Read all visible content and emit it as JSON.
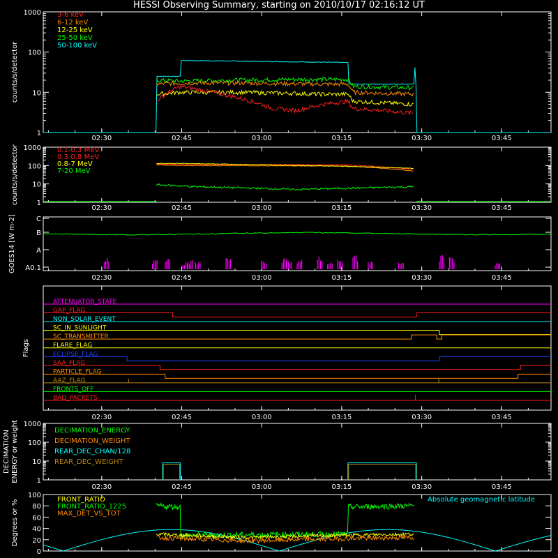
{
  "title": "HESSI Observing Summary, starting on 2010/10/17 02:16:12 UT",
  "time_ticks": [
    "02:30",
    "02:45",
    "03:00",
    "03:15",
    "03:30",
    "03:45"
  ],
  "chart_data": [
    {
      "type": "line",
      "ylabel": "counts/s/detector",
      "ylim": [
        1,
        1000
      ],
      "ylog": true,
      "yticks": [
        "1",
        "10",
        "100",
        "1000"
      ],
      "legend": [
        {
          "name": "3-6 keV",
          "color": "#ff2020"
        },
        {
          "name": "6-12 keV",
          "color": "#ff8c00"
        },
        {
          "name": "12-25 keV",
          "color": "#ffff00"
        },
        {
          "name": "25-50 keV",
          "color": "#00ff00"
        },
        {
          "name": "50-100 keV",
          "color": "#00ffff"
        }
      ],
      "series": [
        {
          "color": "#00ffff",
          "segments": [
            [
              0.0,
              1
            ],
            [
              0.222,
              1
            ],
            [
              0.223,
              25
            ],
            [
              0.27,
              25
            ],
            [
              0.271,
              62
            ],
            [
              0.6,
              55
            ],
            [
              0.601,
              16
            ],
            [
              0.73,
              16
            ],
            [
              0.731,
              55
            ],
            [
              0.735,
              1
            ],
            [
              1.0,
              1
            ]
          ]
        },
        {
          "color": "#00ff00",
          "segments": [
            [
              0.223,
              20
            ],
            [
              0.27,
              19
            ],
            [
              0.35,
              20
            ],
            [
              0.5,
              21
            ],
            [
              0.6,
              21
            ],
            [
              0.61,
              14
            ],
            [
              0.73,
              13
            ]
          ]
        },
        {
          "color": "#ff8c00",
          "segments": [
            [
              0.223,
              16
            ],
            [
              0.27,
              17
            ],
            [
              0.4,
              17
            ],
            [
              0.55,
              16
            ],
            [
              0.6,
              16
            ],
            [
              0.61,
              10
            ],
            [
              0.73,
              9
            ]
          ]
        },
        {
          "color": "#ffff00",
          "segments": [
            [
              0.223,
              9
            ],
            [
              0.27,
              10
            ],
            [
              0.4,
              10
            ],
            [
              0.55,
              9
            ],
            [
              0.6,
              9
            ],
            [
              0.61,
              6
            ],
            [
              0.73,
              5
            ]
          ]
        },
        {
          "color": "#ff2020",
          "segments": [
            [
              0.223,
              6
            ],
            [
              0.27,
              14
            ],
            [
              0.35,
              9
            ],
            [
              0.45,
              4
            ],
            [
              0.5,
              3.5
            ],
            [
              0.55,
              5
            ],
            [
              0.6,
              6
            ],
            [
              0.61,
              4
            ],
            [
              0.73,
              3
            ]
          ]
        }
      ]
    },
    {
      "type": "line",
      "ylabel": "counts/s/detector",
      "ylim": [
        1,
        1000
      ],
      "ylog": true,
      "yticks": [
        "1",
        "10",
        "100",
        "1000"
      ],
      "legend": [
        {
          "name": "0.1-0.3 MeV",
          "color": "#ff2020"
        },
        {
          "name": "0.3-0.8 MeV",
          "color": "#ff2020"
        },
        {
          "name": "0.8-7 MeV",
          "color": "#ffff00"
        },
        {
          "name": "7-20 MeV",
          "color": "#00ff00"
        }
      ],
      "series": [
        {
          "color": "#ff2020",
          "segments": [
            [
              0.223,
              120
            ],
            [
              0.27,
              115
            ],
            [
              0.6,
              110
            ],
            [
              0.73,
              60
            ]
          ]
        },
        {
          "color": "#ff8c00",
          "segments": [
            [
              0.223,
              110
            ],
            [
              0.27,
              100
            ],
            [
              0.6,
              95
            ],
            [
              0.73,
              50
            ]
          ]
        },
        {
          "color": "#ffff00",
          "segments": [
            [
              0.223,
              130
            ],
            [
              0.27,
              130
            ],
            [
              0.6,
              90
            ],
            [
              0.73,
              70
            ]
          ]
        },
        {
          "color": "#00ff00",
          "segments": [
            [
              0.223,
              9
            ],
            [
              0.3,
              7
            ],
            [
              0.5,
              5
            ],
            [
              0.73,
              7
            ]
          ]
        }
      ]
    },
    {
      "type": "line",
      "ylabel": "GOES14 [W m-2]",
      "yticks": [
        "A0.1",
        "A",
        "B",
        "C"
      ],
      "series": [
        {
          "name": "GOES",
          "color": "#00ff00",
          "level": 2.05
        }
      ],
      "bursts_color": "#ff00ff"
    },
    {
      "type": "table",
      "ylabel": "Flags",
      "flags": [
        {
          "name": "ATTENUATOR_STATE",
          "color": "#ff00ff"
        },
        {
          "name": "GAP_FLAG",
          "color": "#ff2020"
        },
        {
          "name": "NON_SOLAR_EVENT",
          "color": "#00ffff"
        },
        {
          "name": "SC_IN_SUNLIGHT",
          "color": "#ffff00"
        },
        {
          "name": "SC_TRANSMITTER",
          "color": "#ff8c00"
        },
        {
          "name": "FLARE_FLAG",
          "color": "#ffff00"
        },
        {
          "name": "ECLIPSE_FLAG",
          "color": "#2040ff"
        },
        {
          "name": "SAA_FLAG",
          "color": "#ff2020"
        },
        {
          "name": "PARTICLE_FLAG",
          "color": "#ff8c00"
        },
        {
          "name": "AAZ_FLAG",
          "color": "#b8860b"
        },
        {
          "name": "FRONTS_OFF",
          "color": "#00ff00"
        },
        {
          "name": "BAD_PACKETS",
          "color": "#ff2020"
        }
      ]
    },
    {
      "type": "line",
      "ylabel": "DECIMATION ENERGY or weight",
      "ylim": [
        1,
        1000
      ],
      "ylog": true,
      "yticks": [
        "1",
        "10",
        "100",
        "1000"
      ],
      "legend": [
        {
          "name": "DECIMATION_ENERGY",
          "color": "#00ff00"
        },
        {
          "name": "DECIMATION_WEIGHT",
          "color": "#ff8c00"
        },
        {
          "name": "REAR_DEC_CHAN/128",
          "color": "#00ffff"
        },
        {
          "name": "REAR_DEC_WEIGHT",
          "color": "#b8860b"
        }
      ]
    },
    {
      "type": "line",
      "ylabel": "Degrees or %",
      "ylim": [
        0,
        100
      ],
      "yticks": [
        "0",
        "20",
        "40",
        "60",
        "80",
        "100"
      ],
      "legend": [
        {
          "name": "FRONT_RATIO",
          "color": "#ffff00"
        },
        {
          "name": "FRONT_RATIO_1225",
          "color": "#00ff00"
        },
        {
          "name": "MAX_DET_VS_TOT",
          "color": "#ff8c00"
        }
      ],
      "annotation": {
        "text": "Absolute geomagnetic latitude",
        "color": "#00ffff"
      }
    }
  ]
}
